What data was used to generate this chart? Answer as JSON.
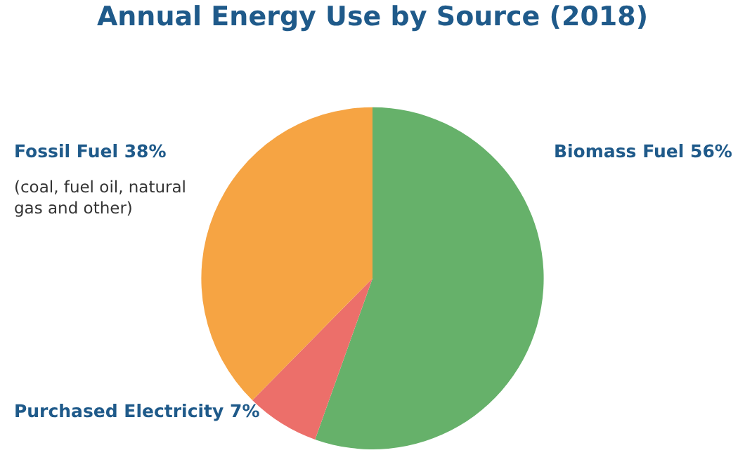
{
  "chart_data": {
    "type": "pie",
    "title": "Annual Energy Use by Source (2018)",
    "categories": [
      "Biomass Fuel",
      "Purchased Electricity",
      "Fossil Fuel"
    ],
    "values": [
      56,
      7,
      38
    ],
    "value_labels": [
      "56%",
      "7%",
      "38%"
    ],
    "colors": [
      "#66b16a",
      "#ec6f6a",
      "#f6a443"
    ],
    "annotations": [
      "(coal, fuel oil, natural\ngas and other)"
    ],
    "legend": false
  }
}
